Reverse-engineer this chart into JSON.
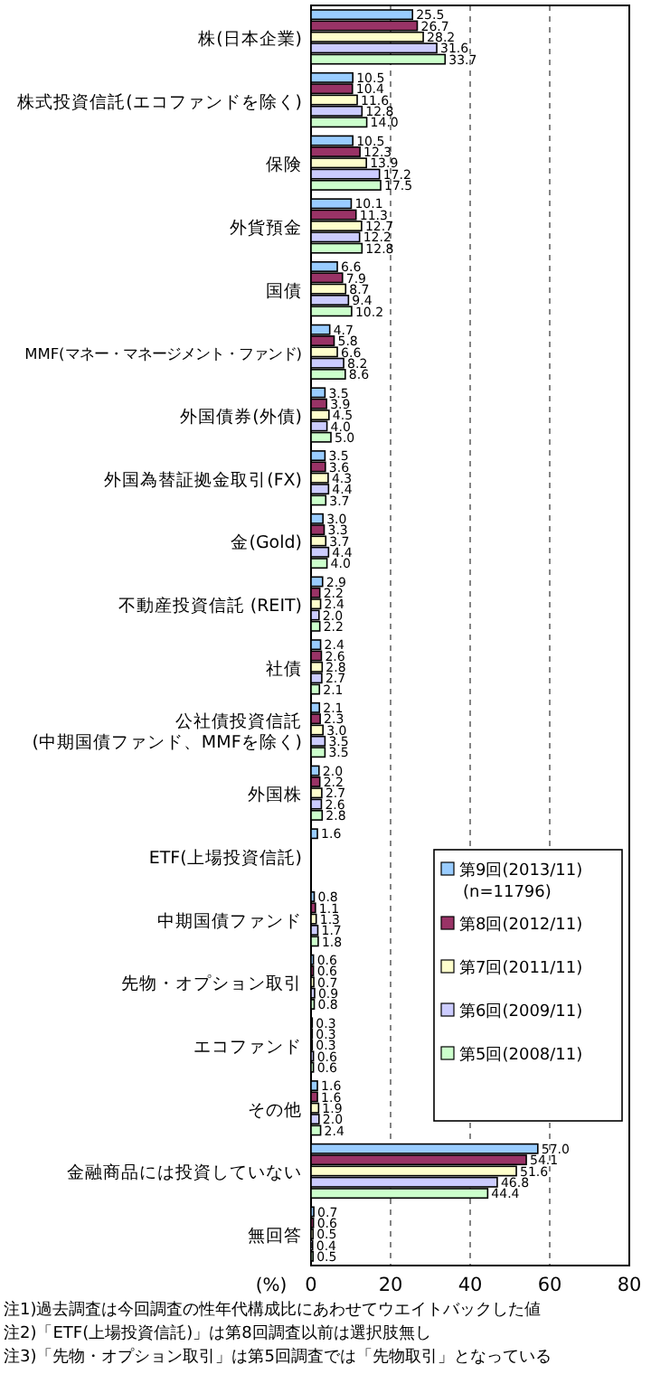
{
  "chart_data": {
    "type": "bar",
    "orientation": "horizontal",
    "categories": [
      "株(日本企業)",
      "株式投資信託(エコファンドを除く)",
      "保険",
      "外貨預金",
      "国債",
      "MMF(マネー・マネージメント・ファンド)",
      "外国債券(外債)",
      "外国為替証拠金取引(FX)",
      "金(Gold)",
      "不動産投資信託 (REIT)",
      "社債",
      "公社債投資信託\n(中期国債ファンド、MMFを除く)",
      "外国株",
      "ETF(上場投資信託)",
      "中期国債ファンド",
      "先物・オプション取引",
      "エコファンド",
      "その他",
      "金融商品には投資していない",
      "無回答"
    ],
    "series": [
      {
        "name": "第9回(2013/11)\n(n=11796)",
        "color": "#99ccff",
        "values": [
          25.5,
          10.5,
          10.5,
          10.1,
          6.6,
          4.7,
          3.5,
          3.5,
          3.0,
          2.9,
          2.4,
          2.1,
          2.0,
          1.6,
          0.8,
          0.6,
          0.3,
          1.6,
          57.0,
          0.7
        ],
        "value_labels": [
          "25.5",
          "10.5",
          "10.5",
          "10.1",
          "6.6",
          "4.7",
          "3.5",
          "3.5",
          "3.0",
          "2.9",
          "2.4",
          "2.1",
          "2.0",
          "1.6",
          "0.8",
          "0.6",
          "0.3",
          "1.6",
          "57.0",
          "0.7"
        ]
      },
      {
        "name": "第8回(2012/11)",
        "color": "#993366",
        "values": [
          26.7,
          10.4,
          12.3,
          11.3,
          7.9,
          5.8,
          3.9,
          3.6,
          3.3,
          2.2,
          2.6,
          2.3,
          2.2,
          null,
          1.1,
          0.6,
          0.3,
          1.6,
          54.1,
          0.6
        ],
        "value_labels": [
          "26.7",
          "10.4",
          "12.3",
          "11.3",
          "7.9",
          "5.8",
          "3.9",
          "3.6",
          "3.3",
          "2.2",
          "2.6",
          "2.3",
          "2.2",
          null,
          "1.1",
          "0.6",
          "0.3",
          "1.6",
          "54.1",
          "0.6"
        ]
      },
      {
        "name": "第7回(2011/11)",
        "color": "#ffffcc",
        "values": [
          28.2,
          11.6,
          13.9,
          12.7,
          8.7,
          6.6,
          4.5,
          4.3,
          3.7,
          2.4,
          2.8,
          3.0,
          2.7,
          null,
          1.3,
          0.7,
          0.3,
          1.9,
          51.6,
          0.5
        ],
        "value_labels": [
          "28.2",
          "11.6",
          "13.9",
          "12.7",
          "8.7",
          "6.6",
          "4.5",
          "4.3",
          "3.7",
          "2.4",
          "2.8",
          "3.0",
          "2.7",
          null,
          "1.3",
          "0.7",
          "0.3",
          "1.9",
          "51.6",
          "0.5"
        ]
      },
      {
        "name": "第6回(2009/11)",
        "color": "#ccccff",
        "values": [
          31.6,
          12.8,
          17.2,
          12.2,
          9.4,
          8.2,
          4.0,
          4.4,
          4.4,
          2.0,
          2.7,
          3.5,
          2.6,
          null,
          1.7,
          0.9,
          0.6,
          2.0,
          46.8,
          0.4
        ],
        "value_labels": [
          "31.6",
          "12.8",
          "17.2",
          "12.2",
          "9.4",
          "8.2",
          "4.0",
          "4.4",
          "4.4",
          "2.0",
          "2.7",
          "3.5",
          "2.6",
          null,
          "1.7",
          "0.9",
          "0.6",
          "2.0",
          "46.8",
          "0.4"
        ]
      },
      {
        "name": "第5回(2008/11)",
        "color": "#ccffcc",
        "values": [
          33.7,
          14.0,
          17.5,
          12.8,
          10.2,
          8.6,
          5.0,
          3.7,
          4.0,
          2.2,
          2.1,
          3.5,
          2.8,
          null,
          1.8,
          0.8,
          0.6,
          2.4,
          44.4,
          0.5
        ],
        "value_labels": [
          "33.7",
          "14.0",
          "17.5",
          "12.8",
          "10.2",
          "8.6",
          "5.0",
          "3.7",
          "4.0",
          "2.2",
          "2.1",
          "3.5",
          "2.8",
          null,
          "1.8",
          "0.8",
          "0.6",
          "2.4",
          "44.4",
          "0.5"
        ]
      }
    ],
    "xlim": [
      0,
      80
    ],
    "xticks": [
      0,
      20,
      40,
      60,
      80
    ],
    "xlabel": "(%)",
    "grid": "x",
    "legend": "right",
    "annotations": [
      "注1)過去調査は今回調査の性年代構成比にあわせてウエイトバックした値",
      "注2)「ETF(上場投資信託)」は第8回調査以前は選択肢無し",
      "注3)「先物・オプション取引」は第5回調査では「先物取引」となっている"
    ]
  }
}
